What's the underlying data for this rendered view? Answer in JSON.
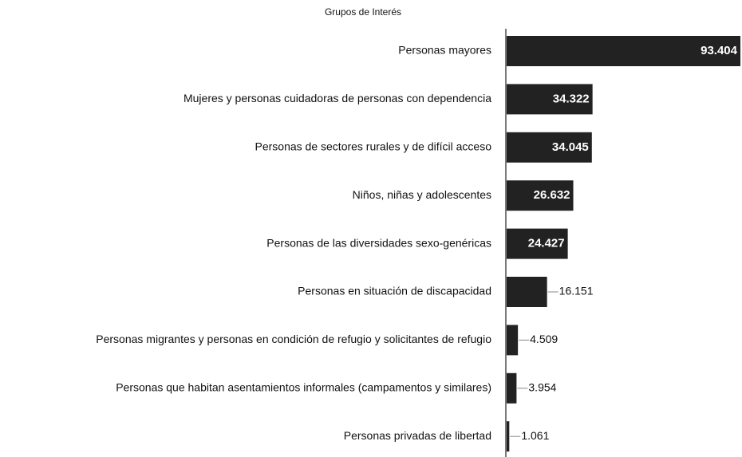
{
  "chart_data": {
    "type": "barh",
    "title": "Grupos de Interés",
    "categories": [
      "Personas mayores",
      "Mujeres y personas cuidadoras de personas con dependencia",
      "Personas de sectores rurales y de difícil acceso",
      "Niños, niñas y adolescentes",
      "Personas de las diversidades sexo-genéricas",
      "Personas en situación de discapacidad",
      "Personas migrantes y personas en condición de refugio y solicitantes de refugio",
      "Personas que habitan asentamientos informales (campamentos y similares)",
      "Personas privadas de libertad"
    ],
    "values": [
      93404,
      34322,
      34045,
      26632,
      24427,
      16151,
      4509,
      3954,
      1061
    ],
    "value_labels": [
      "93.404",
      "34.322",
      "34.045",
      "26.632",
      "24.427",
      "16.151",
      "4.509",
      "3.954",
      "1.061"
    ],
    "color": "#222222"
  }
}
